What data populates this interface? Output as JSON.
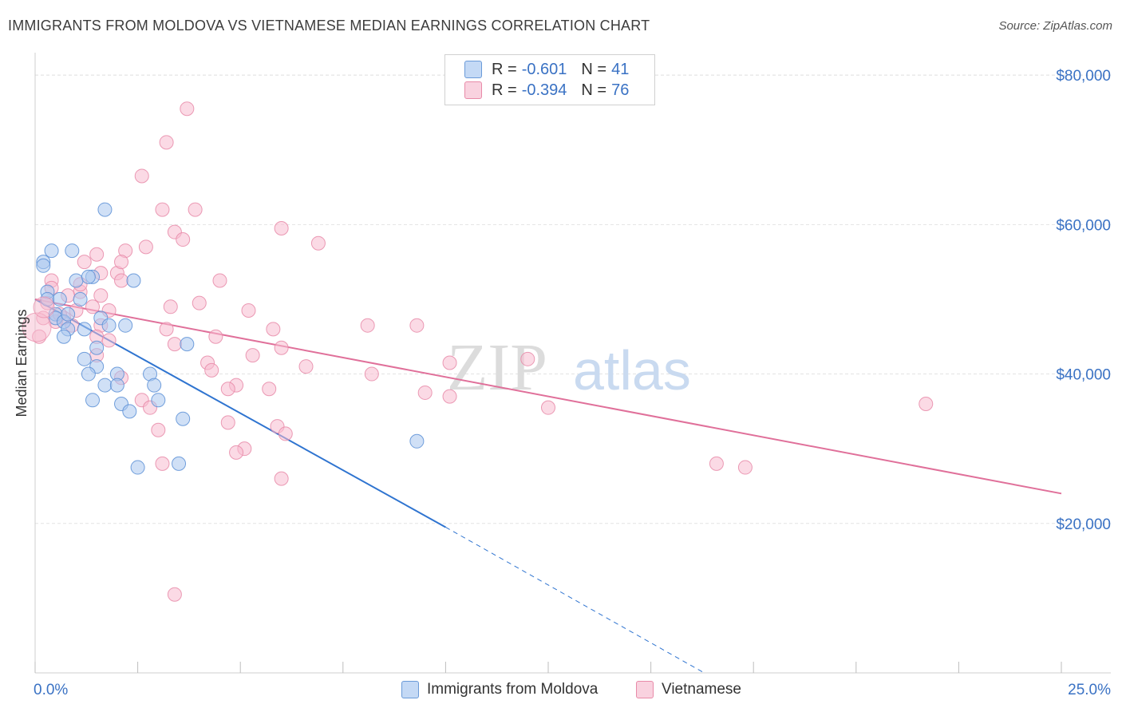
{
  "title": "IMMIGRANTS FROM MOLDOVA VS VIETNAMESE MEDIAN EARNINGS CORRELATION CHART",
  "source": "Source: ZipAtlas.com",
  "watermark": {
    "zip": "ZIP",
    "atlas": "atlas"
  },
  "legend": {
    "rows": [
      {
        "r_label": "R =",
        "r_value": "-0.601",
        "n_label": "N =",
        "n_value": "41",
        "color": "#a9c6ee",
        "stroke": "#6a9ad8"
      },
      {
        "r_label": "R =",
        "r_value": "-0.394",
        "n_label": "N =",
        "n_value": "76",
        "color": "#f7bcd0",
        "stroke": "#e88aa8"
      }
    ]
  },
  "bottom_legend": [
    {
      "label": "Immigrants from Moldova",
      "color": "#c4d9f5",
      "stroke": "#6a9ad8"
    },
    {
      "label": "Vietnamese",
      "color": "#f9d2df",
      "stroke": "#e88aa8"
    }
  ],
  "chart_data": {
    "type": "scatter",
    "title": "IMMIGRANTS FROM MOLDOVA VS VIETNAMESE MEDIAN EARNINGS CORRELATION CHART",
    "xlabel": "",
    "ylabel": "Median Earnings",
    "xlim": [
      0,
      25
    ],
    "ylim": [
      0,
      83000
    ],
    "x_tick_labels": [
      "0.0%",
      "25.0%"
    ],
    "y_ticks": [
      20000,
      40000,
      60000,
      80000
    ],
    "y_tick_labels": [
      "$20,000",
      "$40,000",
      "$60,000",
      "$80,000"
    ],
    "grid": true,
    "legend_position": "top-center",
    "series": [
      {
        "name": "Immigrants from Moldova",
        "color": "#5b8fd6",
        "fill": "#a9c6ee",
        "line_color": "#2f74d0",
        "trend": {
          "x0": 0.0,
          "y0": 50000,
          "x1": 10.0,
          "y1": 19500,
          "dash_to_x": 16.3,
          "dash_to_y": 0
        },
        "points": [
          [
            0.2,
            55000
          ],
          [
            0.2,
            54500
          ],
          [
            0.4,
            56500
          ],
          [
            0.9,
            56500
          ],
          [
            1.0,
            52500
          ],
          [
            1.4,
            53000
          ],
          [
            0.3,
            51000
          ],
          [
            0.3,
            50000
          ],
          [
            0.6,
            50000
          ],
          [
            0.5,
            48000
          ],
          [
            0.5,
            47500
          ],
          [
            0.7,
            47000
          ],
          [
            1.1,
            50000
          ],
          [
            1.6,
            47500
          ],
          [
            1.8,
            46500
          ],
          [
            0.8,
            46000
          ],
          [
            1.2,
            46000
          ],
          [
            0.7,
            45000
          ],
          [
            1.5,
            43500
          ],
          [
            1.2,
            42000
          ],
          [
            1.5,
            41000
          ],
          [
            1.3,
            40000
          ],
          [
            2.0,
            40000
          ],
          [
            2.8,
            40000
          ],
          [
            1.7,
            38500
          ],
          [
            2.0,
            38500
          ],
          [
            2.9,
            38500
          ],
          [
            3.0,
            36500
          ],
          [
            1.4,
            36500
          ],
          [
            2.1,
            36000
          ],
          [
            2.3,
            35000
          ],
          [
            3.6,
            34000
          ],
          [
            3.5,
            28000
          ],
          [
            2.5,
            27500
          ],
          [
            0.8,
            48000
          ],
          [
            2.4,
            52500
          ],
          [
            1.7,
            62000
          ],
          [
            3.7,
            44000
          ],
          [
            9.3,
            31000
          ],
          [
            2.2,
            46500
          ],
          [
            1.3,
            53000
          ]
        ]
      },
      {
        "name": "Vietnamese",
        "color": "#e88aa8",
        "fill": "#f7bcd0",
        "line_color": "#e0709a",
        "trend": {
          "x0": 0.0,
          "y0": 50000,
          "x1": 25.0,
          "y1": 24000
        },
        "points": [
          [
            3.7,
            75500
          ],
          [
            3.2,
            71000
          ],
          [
            2.6,
            66500
          ],
          [
            3.1,
            62000
          ],
          [
            3.9,
            62000
          ],
          [
            3.4,
            59000
          ],
          [
            3.6,
            58000
          ],
          [
            6.0,
            59500
          ],
          [
            6.9,
            57500
          ],
          [
            2.7,
            57000
          ],
          [
            2.2,
            56500
          ],
          [
            1.5,
            56000
          ],
          [
            1.2,
            55000
          ],
          [
            1.6,
            53500
          ],
          [
            2.0,
            53500
          ],
          [
            2.1,
            52500
          ],
          [
            4.5,
            52500
          ],
          [
            0.4,
            52500
          ],
          [
            0.4,
            51500
          ],
          [
            1.1,
            51000
          ],
          [
            1.6,
            50500
          ],
          [
            0.8,
            50500
          ],
          [
            0.3,
            49500
          ],
          [
            1.4,
            49000
          ],
          [
            4.0,
            49500
          ],
          [
            3.3,
            49000
          ],
          [
            5.2,
            48500
          ],
          [
            1.0,
            48500
          ],
          [
            1.8,
            48500
          ],
          [
            0.7,
            47500
          ],
          [
            0.5,
            47000
          ],
          [
            0.9,
            46500
          ],
          [
            1.6,
            46500
          ],
          [
            3.2,
            46000
          ],
          [
            5.8,
            46000
          ],
          [
            8.1,
            46500
          ],
          [
            9.3,
            46500
          ],
          [
            1.5,
            45000
          ],
          [
            4.4,
            45000
          ],
          [
            0.1,
            45000
          ],
          [
            0.2,
            47500
          ],
          [
            3.4,
            44000
          ],
          [
            6.0,
            43500
          ],
          [
            5.3,
            42500
          ],
          [
            4.2,
            41500
          ],
          [
            10.1,
            41500
          ],
          [
            12.0,
            42000
          ],
          [
            4.3,
            40500
          ],
          [
            6.6,
            41000
          ],
          [
            8.2,
            40000
          ],
          [
            2.1,
            39500
          ],
          [
            4.9,
            38500
          ],
          [
            5.7,
            38000
          ],
          [
            4.7,
            38000
          ],
          [
            9.5,
            37500
          ],
          [
            10.1,
            37000
          ],
          [
            2.6,
            36500
          ],
          [
            2.8,
            35500
          ],
          [
            3.0,
            32500
          ],
          [
            4.7,
            33500
          ],
          [
            5.9,
            33000
          ],
          [
            6.1,
            32000
          ],
          [
            12.5,
            35500
          ],
          [
            5.1,
            30000
          ],
          [
            4.9,
            29500
          ],
          [
            3.1,
            28000
          ],
          [
            16.6,
            28000
          ],
          [
            17.3,
            27500
          ],
          [
            6.0,
            26000
          ],
          [
            3.4,
            10500
          ],
          [
            21.7,
            36000
          ],
          [
            1.5,
            42500
          ],
          [
            2.1,
            55000
          ],
          [
            1.1,
            52000
          ],
          [
            0.6,
            48000
          ],
          [
            1.8,
            44500
          ]
        ]
      }
    ]
  }
}
